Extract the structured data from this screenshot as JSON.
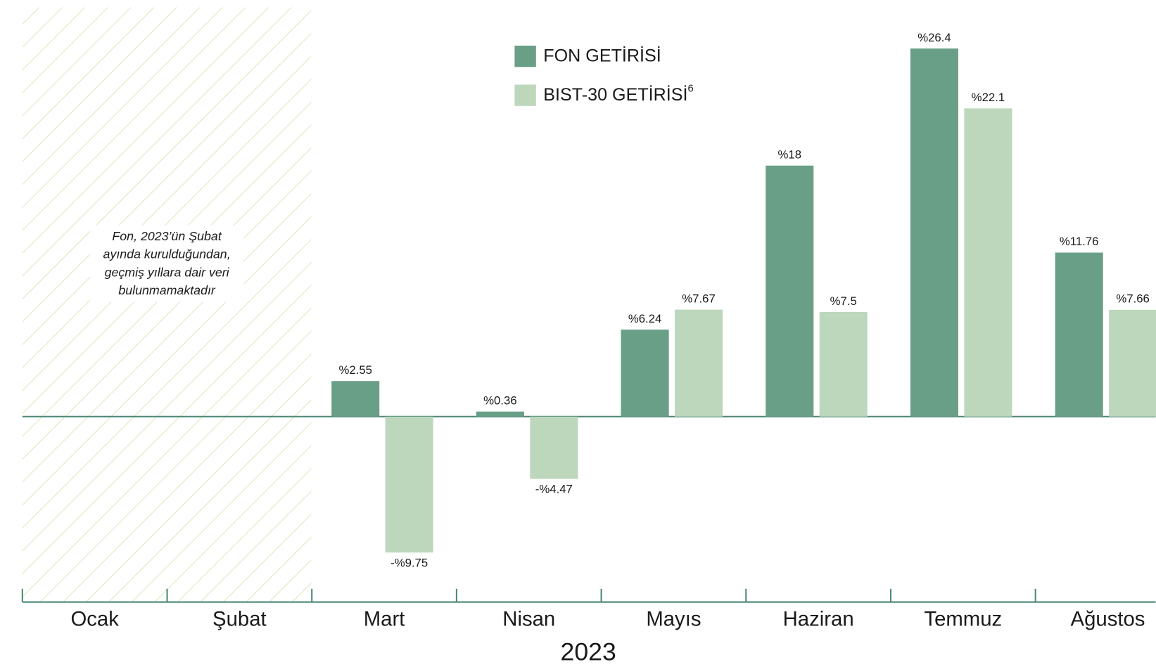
{
  "chart_data": {
    "type": "bar",
    "categories": [
      "Ocak",
      "Şubat",
      "Mart",
      "Nisan",
      "Mayıs",
      "Haziran",
      "Temmuz",
      "Ağustos"
    ],
    "xlabel": "2023",
    "series": [
      {
        "name": "FON GETİRİSİ",
        "color": "#6a9f87",
        "values": [
          null,
          null,
          2.55,
          0.36,
          6.24,
          18,
          26.4,
          11.76
        ],
        "value_labels": [
          null,
          null,
          "%2.55",
          "%0.36",
          "%6.24",
          "%18",
          "%26.4",
          "%11.76"
        ]
      },
      {
        "name": "BIST-30 GETİRİSİ",
        "name_note": "6",
        "color": "#bdd7bc",
        "values": [
          null,
          null,
          -9.75,
          -4.47,
          7.67,
          7.5,
          22.1,
          7.66
        ],
        "value_labels": [
          null,
          null,
          "-%9.75",
          "-%4.47",
          "%7.67",
          "%7.5",
          "%22.1",
          "%7.66"
        ]
      }
    ],
    "annotation": [
      "Fon, 2023’ün Şubat",
      "ayında kurulduğundan,",
      "geçmiş yıllara dair veri",
      "bulunmamaktadır"
    ],
    "ylim": [
      -13.3,
      29.35
    ],
    "axis_color": "#4e8a78"
  }
}
